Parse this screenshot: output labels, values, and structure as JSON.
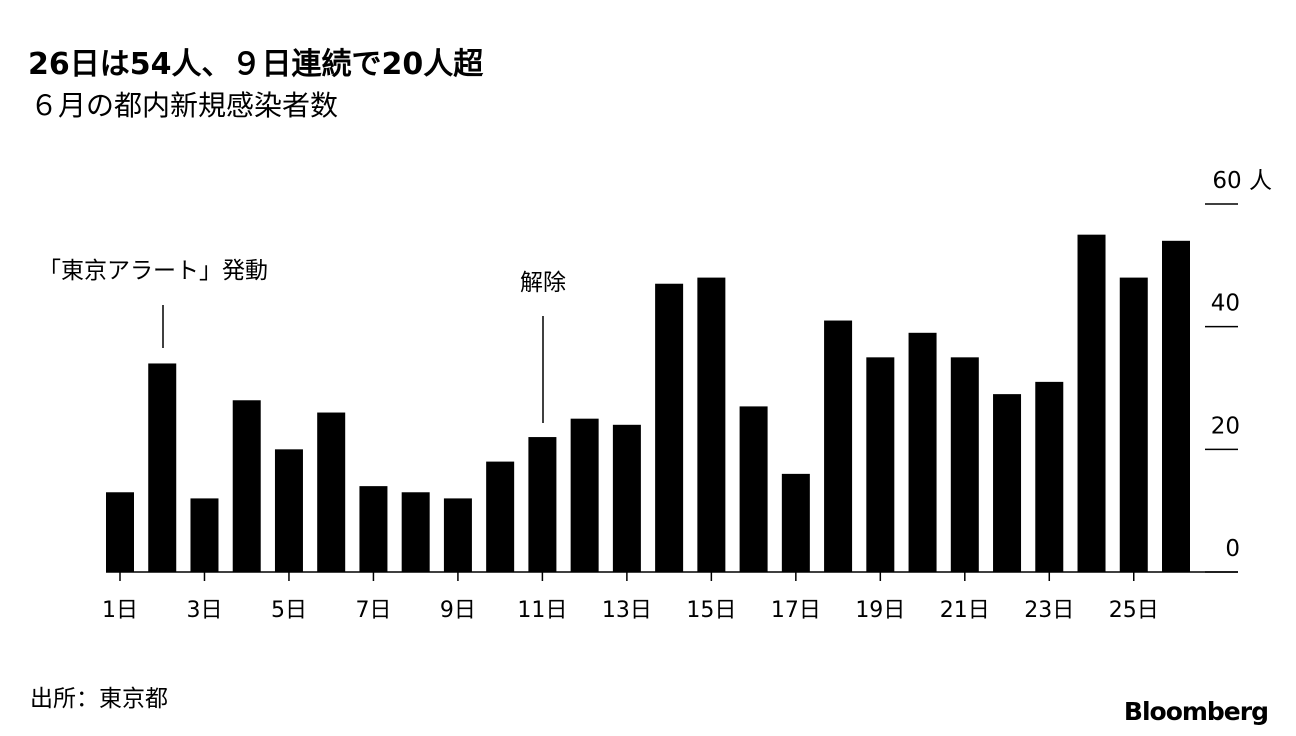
{
  "chart_data": {
    "type": "bar",
    "title": "26日は54人、９日連続で20人超",
    "subtitle": "６月の都内新規感染者数",
    "categories": [
      "1日",
      null,
      "3日",
      null,
      "5日",
      null,
      "7日",
      null,
      "9日",
      null,
      "11日",
      null,
      "13日",
      null,
      "15日",
      null,
      "17日",
      null,
      "19日",
      null,
      "21日",
      null,
      "23日",
      null,
      "25日",
      null
    ],
    "values": [
      13,
      34,
      12,
      28,
      20,
      26,
      14,
      13,
      12,
      18,
      22,
      25,
      24,
      47,
      48,
      27,
      16,
      41,
      35,
      39,
      35,
      29,
      31,
      55,
      48,
      54
    ],
    "color": "#000000",
    "ylim": [
      0,
      60
    ],
    "yticks": [
      0,
      20,
      40,
      {
        "value": 60,
        "label": "60 人"
      }
    ],
    "annotations": [
      "「東京アラート」発動",
      "解除"
    ],
    "source": "出所：東京都",
    "brand": "Bloomberg"
  }
}
